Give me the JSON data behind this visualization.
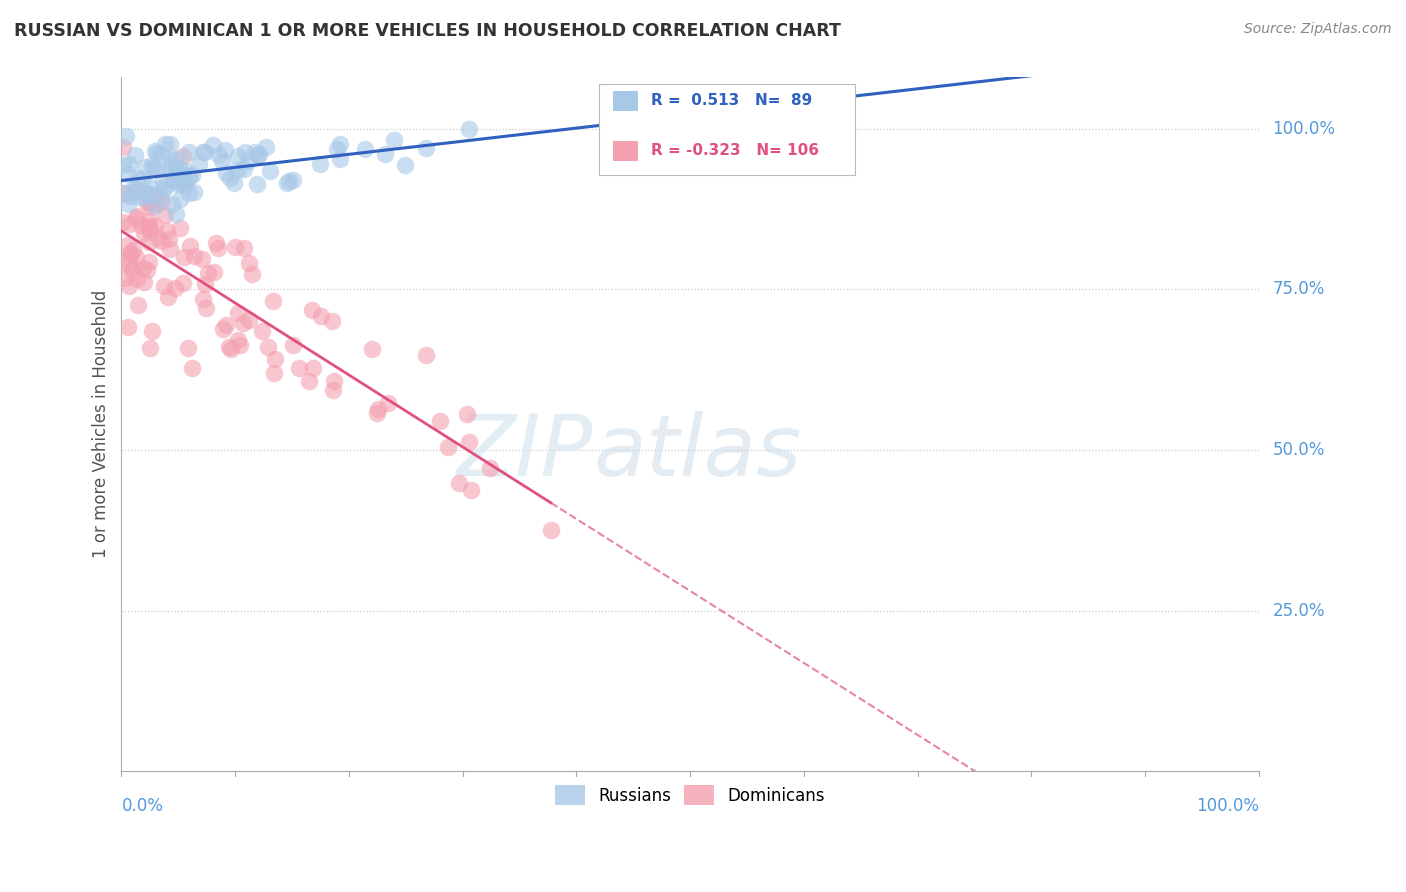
{
  "title": "RUSSIAN VS DOMINICAN 1 OR MORE VEHICLES IN HOUSEHOLD CORRELATION CHART",
  "source": "Source: ZipAtlas.com",
  "ylabel": "1 or more Vehicles in Household",
  "russian_R": 0.513,
  "russian_N": 89,
  "dominican_R": -0.323,
  "dominican_N": 106,
  "russian_color": "#a8c8e8",
  "dominican_color": "#f4a0b0",
  "russian_line_color": "#3060c0",
  "dominican_line_color": "#e05080",
  "bg_color": "#ffffff",
  "watermark_zip": "ZIP",
  "watermark_atlas": "atlas",
  "right_label_color": "#5599dd",
  "title_color": "#333333",
  "source_color": "#888888",
  "legend_border_color": "#bbbbbb",
  "legend_text_color": "#3060c0",
  "dominican_legend_text_color": "#e05080",
  "grid_color": "#cccccc",
  "spine_color": "#aaaaaa"
}
